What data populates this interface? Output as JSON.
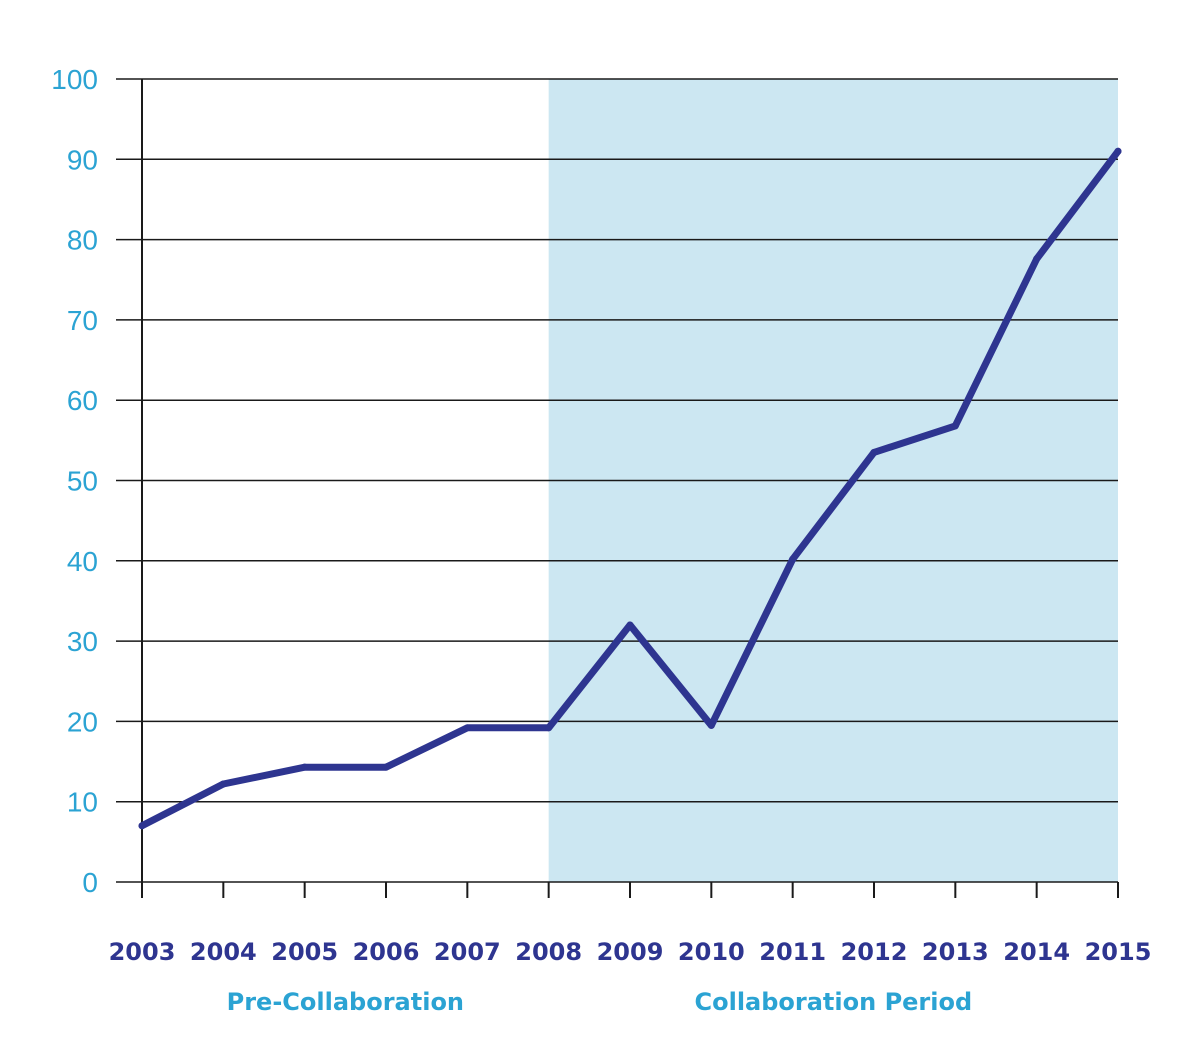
{
  "chart_data": {
    "type": "line",
    "title": "",
    "xlabel": "",
    "ylabel": "",
    "x": [
      "2003",
      "2004",
      "2005",
      "2006",
      "2007",
      "2008",
      "2009",
      "2010",
      "2011",
      "2012",
      "2013",
      "2014",
      "2015"
    ],
    "series": [
      {
        "values": [
          7,
          12.2,
          14.3,
          14.3,
          19.2,
          19.2,
          32,
          19.5,
          40.2,
          53.5,
          56.8,
          77.6,
          91
        ]
      }
    ],
    "ylim": [
      0,
      100
    ],
    "yticks": [
      "0",
      "10",
      "20",
      "30",
      "40",
      "50",
      "60",
      "70",
      "80",
      "90",
      "100"
    ],
    "grid": true,
    "shaded_region": {
      "from": "2008",
      "to": "2015"
    },
    "period_labels": [
      {
        "text": "Pre-Collaboration",
        "from": "2003",
        "to": "2008"
      },
      {
        "text": "Collaboration Period",
        "from": "2008",
        "to": "2015"
      }
    ],
    "colors": {
      "line": "#2e3590",
      "shade": "#cce7f2",
      "ytick_text": "#2ba3d3",
      "xtick_text": "#2e3590",
      "period_text": "#2ba3d3",
      "grid": "#1a1a1a",
      "axis": "#1a1a1a"
    }
  }
}
